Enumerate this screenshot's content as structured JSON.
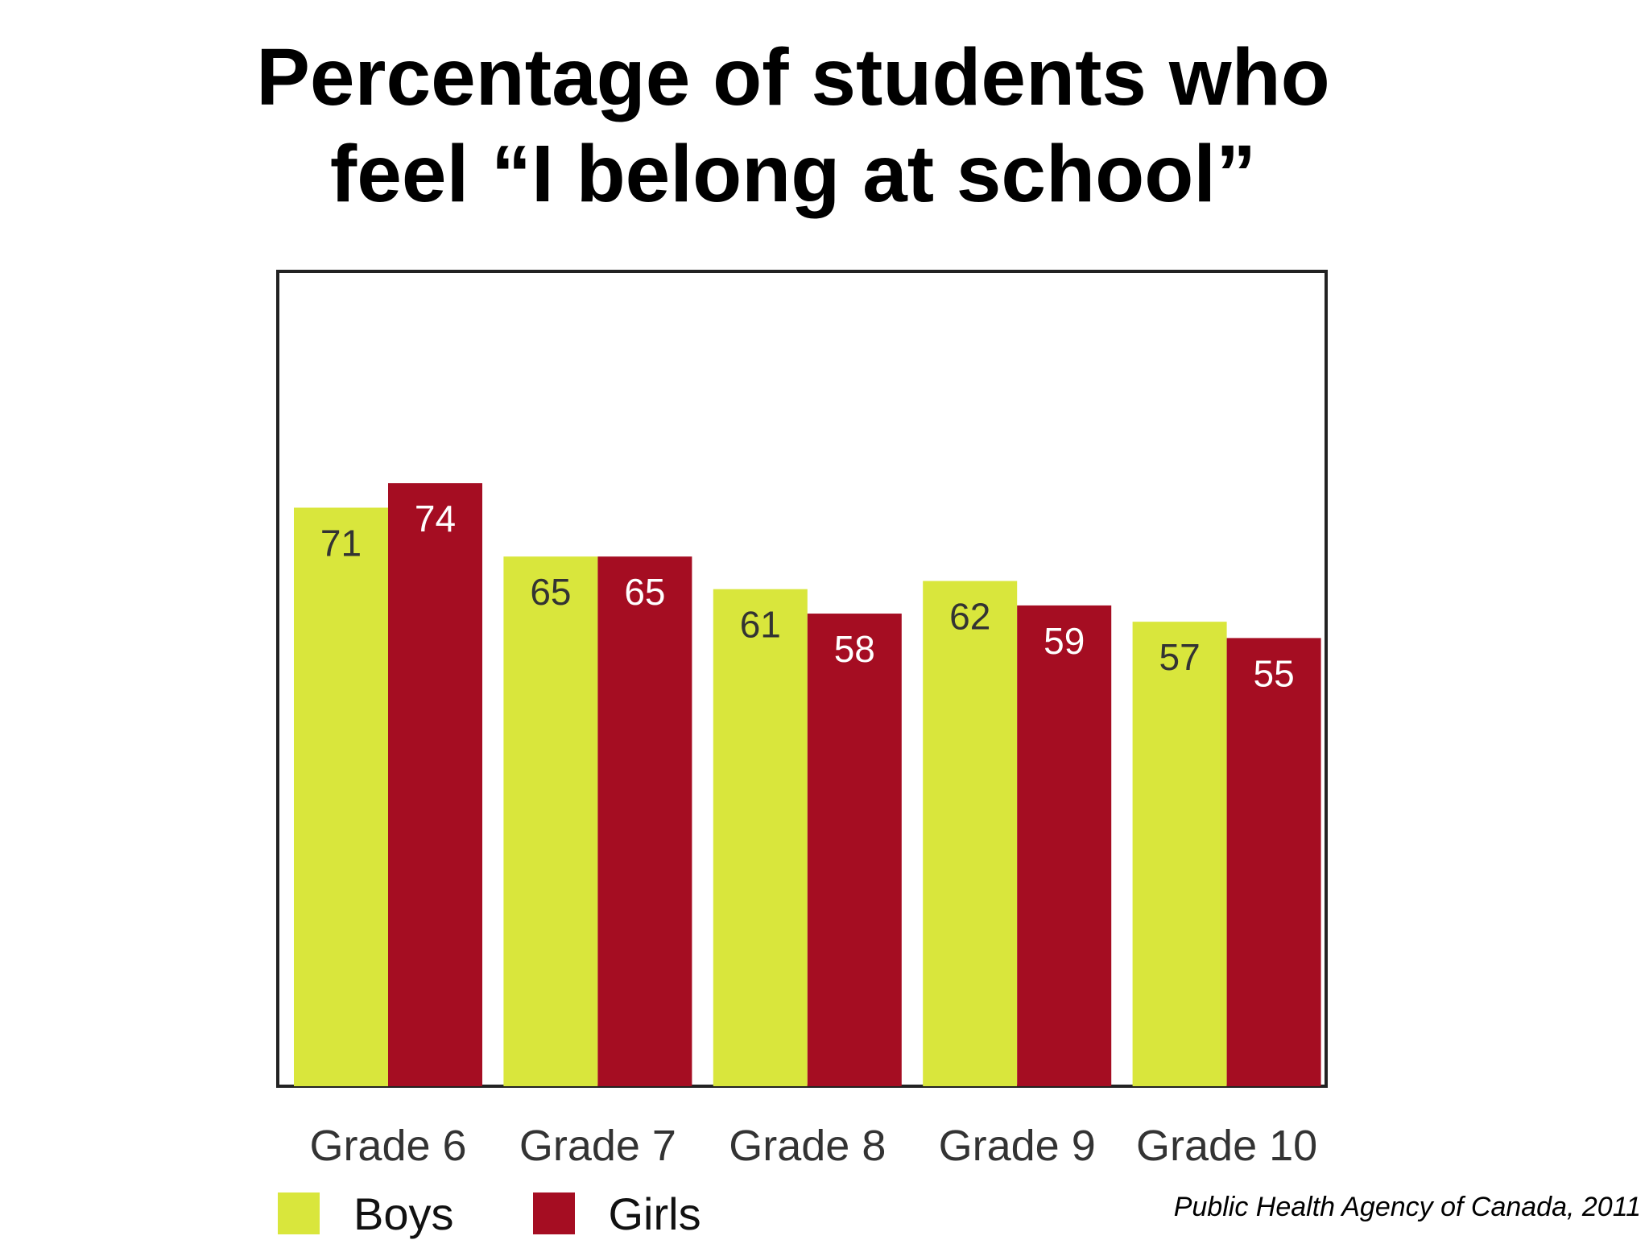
{
  "title_line1": "Percentage of students who",
  "title_line2": "feel “I belong at school”",
  "source": "Public Health Agency of Canada, 2011",
  "colors": {
    "boys": "#d9e63c",
    "girls": "#a50d22",
    "boys_label": "#333333",
    "girls_label": "#ffffff",
    "axis_label": "#333333",
    "frame": "#222222"
  },
  "legend": [
    {
      "label": "Boys",
      "color_key": "boys"
    },
    {
      "label": "Girls",
      "color_key": "girls"
    }
  ],
  "chart_data": {
    "type": "bar",
    "title": "Percentage of students who feel “I belong at school”",
    "categories": [
      "Grade 6",
      "Grade 7",
      "Grade 8",
      "Grade 9",
      "Grade 10"
    ],
    "series": [
      {
        "name": "Boys",
        "values": [
          71,
          65,
          61,
          62,
          57
        ]
      },
      {
        "name": "Girls",
        "values": [
          74,
          65,
          58,
          59,
          55
        ]
      }
    ],
    "ylim": [
      0,
      100
    ],
    "grid": false,
    "legend_position": "bottom-left",
    "data_labels": true
  }
}
